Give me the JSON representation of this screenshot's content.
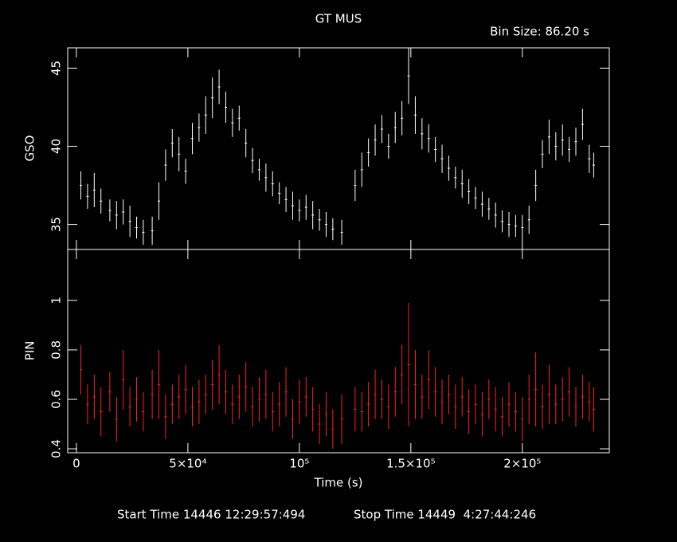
{
  "chart_data": [
    {
      "type": "errorbar",
      "title": "GT MUS",
      "subtitle": "Bin Size: 86.20 s",
      "ylabel": "GSO",
      "x": [
        2000,
        5000,
        8000,
        11000,
        15000,
        18000,
        21000,
        24000,
        27000,
        30000,
        34000,
        37000,
        40000,
        43000,
        46000,
        49000,
        52000,
        55000,
        58000,
        61000,
        64000,
        67000,
        70000,
        73000,
        76000,
        79000,
        82000,
        85000,
        88000,
        91000,
        94000,
        97000,
        100000,
        103000,
        106000,
        109000,
        112000,
        115000,
        119000,
        125000,
        128000,
        131000,
        134000,
        137000,
        140000,
        143000,
        146000,
        149000,
        152000,
        155000,
        158000,
        161000,
        164000,
        167000,
        170000,
        173000,
        176000,
        179000,
        182000,
        185000,
        188000,
        191000,
        194000,
        197000,
        200000,
        203000,
        206000,
        209000,
        212000,
        215000,
        218000,
        221000,
        224000,
        227000,
        230000,
        232000
      ],
      "series": [
        {
          "name": "GSO",
          "color": "#ffffff",
          "values": [
            37.5,
            36.8,
            37.2,
            36.5,
            35.9,
            35.6,
            35.8,
            35.2,
            34.8,
            34.5,
            34.6,
            36.5,
            38.8,
            40.2,
            39.5,
            38.4,
            40.5,
            41.2,
            42.0,
            43.1,
            43.8,
            42.5,
            41.5,
            41.8,
            40.2,
            39.1,
            38.5,
            38.0,
            37.6,
            37.0,
            36.6,
            36.2,
            35.9,
            36.1,
            35.6,
            35.3,
            35.0,
            34.7,
            34.5,
            37.5,
            38.5,
            39.6,
            40.4,
            41.1,
            40.0,
            41.2,
            41.8,
            44.5,
            42.0,
            40.8,
            40.5,
            39.8,
            39.2,
            38.6,
            38.0,
            37.6,
            37.1,
            36.7,
            36.3,
            36.0,
            35.6,
            35.2,
            35.0,
            34.9,
            34.8,
            35.3,
            37.5,
            39.5,
            40.6,
            40.0,
            40.4,
            39.8,
            40.3,
            41.4,
            39.2,
            38.8
          ],
          "errors": [
            0.9,
            0.8,
            1.1,
            0.8,
            0.7,
            0.9,
            0.8,
            1.0,
            0.7,
            0.8,
            0.9,
            1.2,
            1.0,
            0.9,
            1.1,
            0.8,
            1.0,
            0.9,
            1.2,
            1.3,
            1.1,
            1.0,
            0.9,
            0.8,
            0.9,
            0.8,
            0.7,
            0.9,
            0.8,
            0.7,
            0.8,
            0.9,
            0.7,
            0.8,
            0.9,
            0.7,
            0.8,
            0.7,
            0.8,
            1.0,
            1.1,
            0.9,
            1.0,
            0.9,
            0.8,
            1.0,
            1.1,
            1.8,
            1.2,
            1.0,
            0.9,
            0.8,
            0.9,
            0.8,
            0.7,
            0.9,
            0.8,
            0.7,
            0.8,
            0.7,
            0.8,
            0.7,
            0.8,
            0.7,
            0.8,
            0.9,
            1.0,
            0.9,
            1.1,
            0.9,
            1.0,
            0.8,
            0.9,
            1.0,
            0.9,
            0.8
          ]
        }
      ],
      "xlim": [
        -3900,
        239000
      ],
      "ylim": [
        33.4,
        46.3
      ],
      "yticks": [
        35,
        40,
        45
      ]
    },
    {
      "type": "errorbar",
      "ylabel": "PIN",
      "xlabel": "Time (s)",
      "x": [
        2000,
        5000,
        8000,
        11000,
        15000,
        18000,
        21000,
        24000,
        27000,
        30000,
        34000,
        37000,
        40000,
        43000,
        46000,
        49000,
        52000,
        55000,
        58000,
        61000,
        64000,
        67000,
        70000,
        73000,
        76000,
        79000,
        82000,
        85000,
        88000,
        91000,
        94000,
        97000,
        100000,
        103000,
        106000,
        109000,
        112000,
        115000,
        119000,
        125000,
        128000,
        131000,
        134000,
        137000,
        140000,
        143000,
        146000,
        149000,
        152000,
        155000,
        158000,
        161000,
        164000,
        167000,
        170000,
        173000,
        176000,
        179000,
        182000,
        185000,
        188000,
        191000,
        194000,
        197000,
        200000,
        203000,
        206000,
        209000,
        212000,
        215000,
        218000,
        221000,
        224000,
        227000,
        230000,
        232000
      ],
      "series": [
        {
          "name": "PIN",
          "color": "#ff2020",
          "values": [
            0.72,
            0.58,
            0.61,
            0.55,
            0.63,
            0.52,
            0.68,
            0.57,
            0.6,
            0.55,
            0.62,
            0.66,
            0.53,
            0.58,
            0.61,
            0.64,
            0.57,
            0.59,
            0.62,
            0.66,
            0.7,
            0.63,
            0.58,
            0.61,
            0.65,
            0.57,
            0.6,
            0.62,
            0.55,
            0.58,
            0.63,
            0.52,
            0.59,
            0.61,
            0.56,
            0.5,
            0.54,
            0.48,
            0.52,
            0.56,
            0.55,
            0.58,
            0.62,
            0.6,
            0.57,
            0.63,
            0.7,
            0.74,
            0.66,
            0.61,
            0.68,
            0.63,
            0.59,
            0.62,
            0.57,
            0.61,
            0.55,
            0.58,
            0.54,
            0.6,
            0.56,
            0.53,
            0.58,
            0.55,
            0.52,
            0.6,
            0.64,
            0.57,
            0.62,
            0.58,
            0.6,
            0.63,
            0.57,
            0.61,
            0.59,
            0.56
          ],
          "errors": [
            0.1,
            0.08,
            0.09,
            0.1,
            0.08,
            0.09,
            0.12,
            0.08,
            0.09,
            0.08,
            0.1,
            0.14,
            0.09,
            0.08,
            0.09,
            0.1,
            0.08,
            0.09,
            0.08,
            0.1,
            0.12,
            0.09,
            0.08,
            0.09,
            0.1,
            0.08,
            0.09,
            0.1,
            0.08,
            0.09,
            0.1,
            0.08,
            0.09,
            0.08,
            0.09,
            0.08,
            0.09,
            0.08,
            0.1,
            0.09,
            0.08,
            0.09,
            0.1,
            0.08,
            0.09,
            0.1,
            0.12,
            0.25,
            0.14,
            0.09,
            0.12,
            0.1,
            0.09,
            0.08,
            0.09,
            0.08,
            0.09,
            0.08,
            0.09,
            0.08,
            0.09,
            0.08,
            0.09,
            0.08,
            0.09,
            0.1,
            0.15,
            0.09,
            0.12,
            0.08,
            0.09,
            0.1,
            0.08,
            0.09,
            0.08,
            0.09
          ]
        }
      ],
      "xlim": [
        -3900,
        239000
      ],
      "ylim": [
        0.384,
        1.206
      ],
      "yticks": [
        0.4,
        0.6,
        0.8,
        1
      ],
      "xticks": [
        0,
        {
          "value": 50000,
          "label": "5×10⁴"
        },
        {
          "value": 100000,
          "label": "10⁵"
        },
        {
          "value": 150000,
          "label": "1.5×10⁵"
        },
        {
          "value": 200000,
          "label": "2×10⁵"
        }
      ],
      "footer": [
        "Start Time 14446 12:29:57:494",
        "Stop Time 14449  4:27:44:246"
      ]
    }
  ]
}
